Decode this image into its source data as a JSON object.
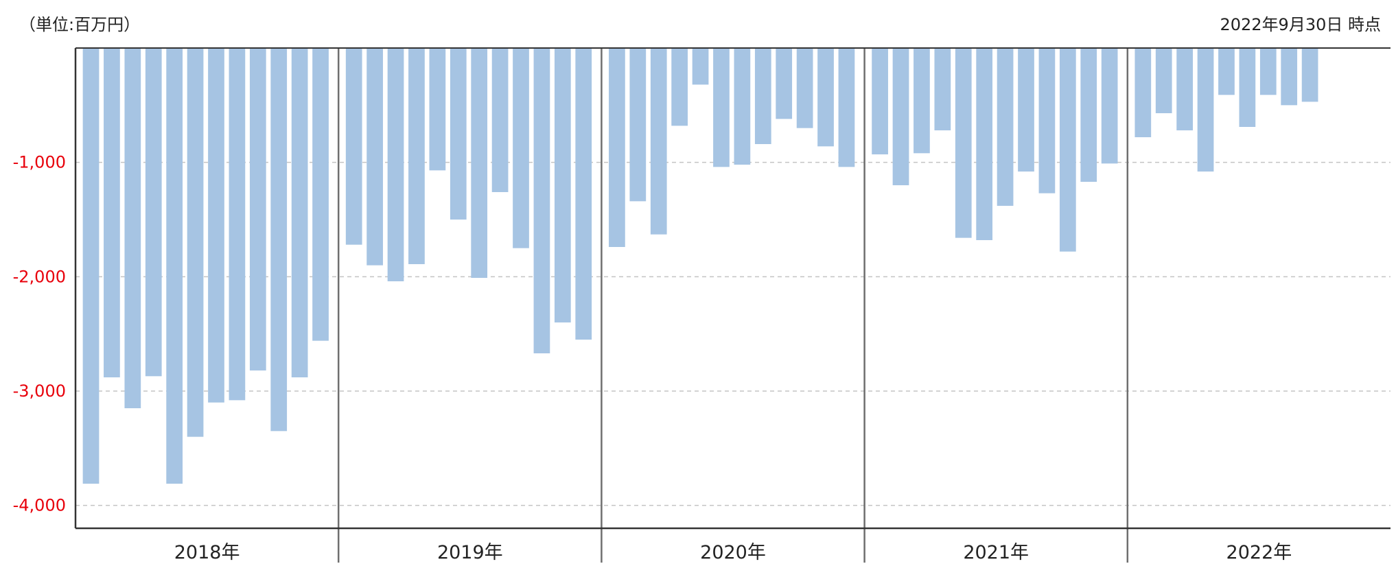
{
  "header": {
    "unit": "（単位:百万円）",
    "as_of": "2022年9月30日 時点"
  },
  "chart_data": {
    "type": "bar",
    "title": "",
    "xlabel": "",
    "ylabel": "",
    "ylim": [
      -4200,
      0
    ],
    "y_ticks": [
      -1000,
      -2000,
      -3000,
      -4000
    ],
    "y_tick_labels": [
      "-1,000",
      "-2,000",
      "-3,000",
      "-4,000"
    ],
    "y_tick_color": "#e8000b",
    "bar_color": "#a6c4e3",
    "grid": true,
    "groups": [
      {
        "label": "2018年",
        "values": [
          -3810,
          -2880,
          -3150,
          -2870,
          -3810,
          -3400,
          -3100,
          -3080,
          -2820,
          -3350,
          -2880,
          -2560
        ]
      },
      {
        "label": "2019年",
        "values": [
          -1720,
          -1900,
          -2040,
          -1890,
          -1070,
          -1500,
          -2010,
          -1260,
          -1750,
          -2670,
          -2400,
          -2550
        ]
      },
      {
        "label": "2020年",
        "values": [
          -1740,
          -1340,
          -1630,
          -680,
          -320,
          -1040,
          -1020,
          -840,
          -620,
          -700,
          -860,
          -1040
        ]
      },
      {
        "label": "2021年",
        "values": [
          -930,
          -1200,
          -920,
          -720,
          -1660,
          -1680,
          -1380,
          -1080,
          -1270,
          -1780,
          -1170,
          -1010
        ]
      },
      {
        "label": "2022年",
        "values": [
          -780,
          -570,
          -720,
          -1080,
          -410,
          -690,
          -410,
          -500,
          -470
        ]
      }
    ]
  }
}
